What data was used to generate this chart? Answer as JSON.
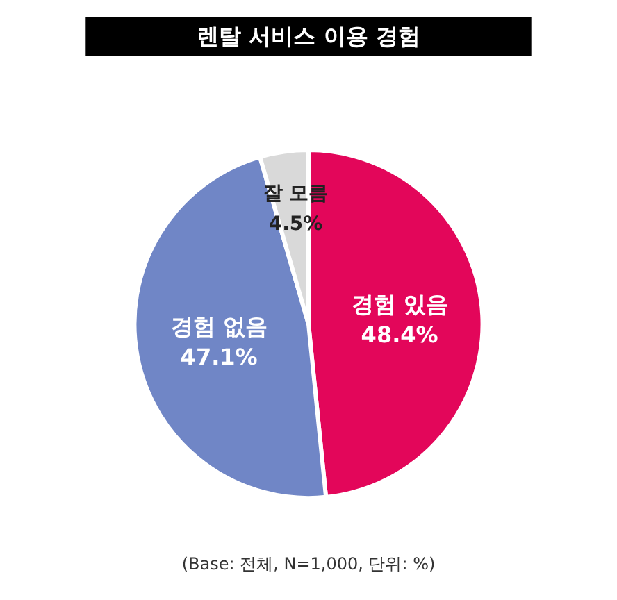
{
  "chart_data": {
    "type": "pie",
    "title": "렌탈 서비스 이용 경험",
    "categories": [
      "경험 있음",
      "경험 없음",
      "잘 모름"
    ],
    "values": [
      48.4,
      47.1,
      4.5
    ],
    "value_labels": [
      "48.4%",
      "47.1%",
      "4.5%"
    ],
    "colors": [
      "#e3065a",
      "#7086c6",
      "#d9d9d9"
    ],
    "legend": false,
    "annotations": [
      "(Base: 전체, N=1,000, 단위: %)"
    ]
  }
}
